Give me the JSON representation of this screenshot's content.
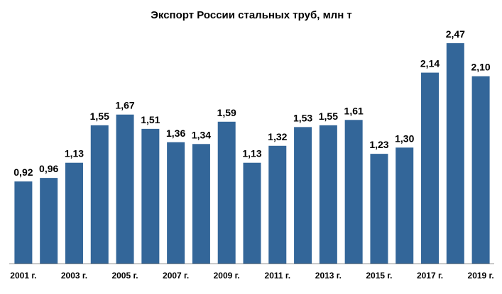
{
  "chart_data": {
    "type": "bar",
    "title": "Экспорт России стальных труб, млн т",
    "categories": [
      "2001 г.",
      null,
      "2003 г.",
      null,
      "2005 г.",
      null,
      "2007 г.",
      null,
      "2009 г.",
      null,
      "2011 г.",
      null,
      "2013 г.",
      null,
      "2015 г.",
      null,
      "2017 г.",
      null,
      "2019 г."
    ],
    "values": [
      0.92,
      0.96,
      1.13,
      1.55,
      1.67,
      1.51,
      1.36,
      1.34,
      1.59,
      1.13,
      1.32,
      1.53,
      1.55,
      1.61,
      1.23,
      1.3,
      2.14,
      2.47,
      2.1
    ],
    "value_labels": [
      "0,92",
      "0,96",
      "1,13",
      "1,55",
      "1,67",
      "1,51",
      "1,36",
      "1,34",
      "1,59",
      "1,13",
      "1,32",
      "1,53",
      "1,55",
      "1,61",
      "1,23",
      "1,30",
      "2,14",
      "2,47",
      "2,10"
    ],
    "color": "#336699"
  }
}
